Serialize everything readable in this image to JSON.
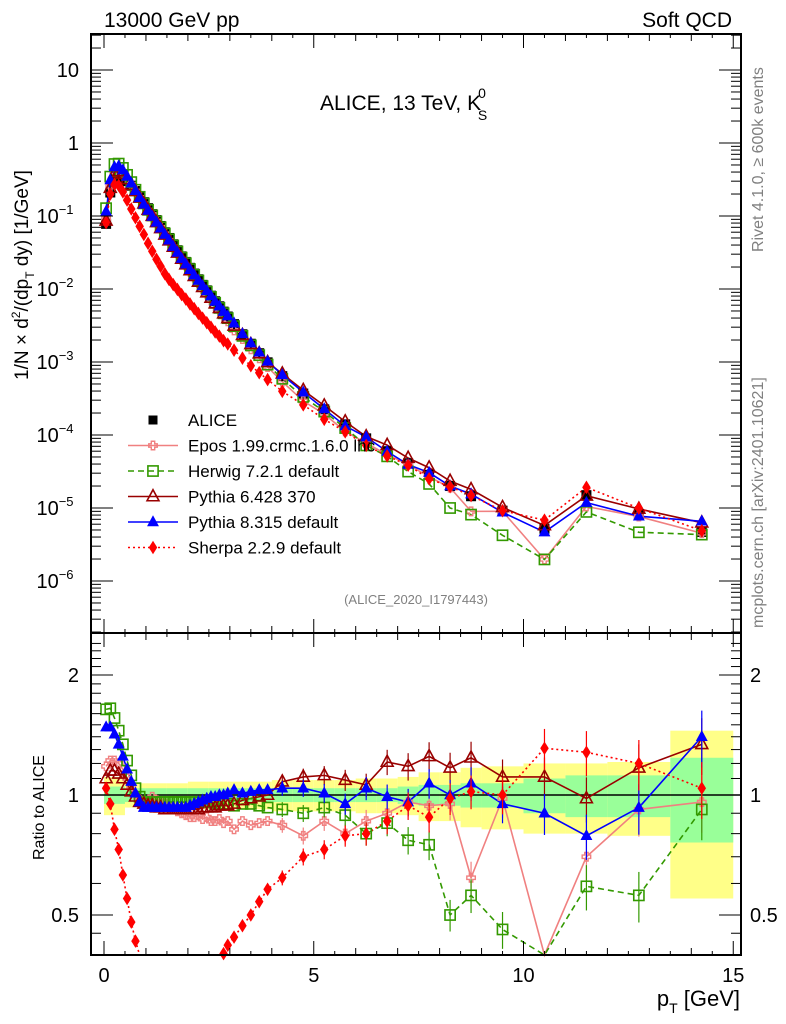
{
  "header": {
    "left_title": "13000 GeV pp",
    "right_title": "Soft QCD"
  },
  "side_labels": {
    "rivet": "Rivet 4.1.0, ≥ 600k events",
    "mcplots": "mcplots.cern.ch [arXiv:2401.10621]"
  },
  "chart_data": [
    {
      "type": "line",
      "panel": "main",
      "title": "ALICE, 13 TeV, K",
      "title_sup": "0",
      "title_sub": "S",
      "analysis_id": "(ALICE_2020_I1797443)",
      "ylabel": "1/N × d²/(dp_T dy) [1/GeV]",
      "yscale": "log",
      "ylim": [
        2.5e-07,
        35
      ],
      "xlim": [
        -0.3,
        15.2
      ],
      "yticks": [
        {
          "v": 10,
          "label": "10"
        },
        {
          "v": 1,
          "label": "1"
        },
        {
          "v": 0.1,
          "label": "10",
          "exp": "−1"
        },
        {
          "v": 0.01,
          "label": "10",
          "exp": "−2"
        },
        {
          "v": 0.001,
          "label": "10",
          "exp": "−3"
        },
        {
          "v": 0.0001,
          "label": "10",
          "exp": "−4"
        },
        {
          "v": 1e-05,
          "label": "10",
          "exp": "−5"
        },
        {
          "v": 1e-06,
          "label": "10",
          "exp": "−6"
        }
      ],
      "legend_position": "lower-left",
      "x": [
        0.05,
        0.15,
        0.25,
        0.35,
        0.45,
        0.55,
        0.65,
        0.75,
        0.85,
        0.95,
        1.05,
        1.15,
        1.25,
        1.35,
        1.45,
        1.55,
        1.65,
        1.75,
        1.85,
        1.95,
        2.05,
        2.15,
        2.25,
        2.35,
        2.45,
        2.55,
        2.65,
        2.75,
        2.85,
        2.95,
        3.1,
        3.3,
        3.5,
        3.7,
        3.9,
        4.25,
        4.75,
        5.25,
        5.75,
        6.25,
        6.75,
        7.25,
        7.75,
        8.25,
        8.75,
        9.5,
        10.5,
        11.5,
        12.75,
        14.25
      ],
      "alice": [
        0.078,
        0.21,
        0.33,
        0.36,
        0.34,
        0.3,
        0.26,
        0.22,
        0.185,
        0.155,
        0.128,
        0.106,
        0.088,
        0.073,
        0.06,
        0.05,
        0.041,
        0.034,
        0.028,
        0.0235,
        0.0195,
        0.0163,
        0.0136,
        0.0114,
        0.0096,
        0.0081,
        0.0068,
        0.0058,
        0.0049,
        0.0042,
        0.0033,
        0.0024,
        0.00178,
        0.00132,
        0.00099,
        0.00064,
        0.00037,
        0.000225,
        0.00014,
        9e-05,
        6e-05,
        4.1e-05,
        2.85e-05,
        2e-05,
        1.45e-05,
        9.2e-06,
        5.2e-06,
        1.5e-05,
        8.3e-06,
        4.7e-06
      ],
      "series": [
        {
          "name": "ALICE",
          "color": "#000000",
          "marker": "square-filled",
          "line": "none",
          "is_reference": true
        },
        {
          "name": "Epos 1.99.crmc.1.6.0 lhc",
          "color": "#f08080",
          "marker": "cross-open",
          "line": "solid",
          "ratio": [
            1.18,
            1.22,
            1.22,
            1.2,
            1.16,
            1.1,
            1.05,
            1.0,
            0.97,
            0.95,
            0.94,
            0.99,
            0.97,
            0.96,
            0.95,
            0.93,
            0.92,
            0.91,
            0.9,
            0.89,
            0.88,
            0.88,
            0.89,
            0.87,
            0.88,
            0.86,
            0.86,
            0.87,
            0.85,
            0.86,
            0.82,
            0.86,
            0.84,
            0.85,
            0.86,
            0.84,
            0.79,
            0.86,
            0.8,
            0.86,
            0.9,
            0.96,
            0.94,
            0.95,
            0.62,
            0.98,
            0.38,
            0.7,
            0.92,
            0.96
          ]
        },
        {
          "name": "Herwig 7.2.1 default",
          "color": "#339900",
          "marker": "square-open",
          "line": "dashed",
          "ratio": [
            1.64,
            1.65,
            1.56,
            1.45,
            1.34,
            1.22,
            1.12,
            1.04,
            0.99,
            0.96,
            0.95,
            0.96,
            0.96,
            0.96,
            0.96,
            0.96,
            0.96,
            0.96,
            0.96,
            0.96,
            0.96,
            0.96,
            0.96,
            0.96,
            0.96,
            0.96,
            0.95,
            0.95,
            0.95,
            0.95,
            0.94,
            0.95,
            0.95,
            0.94,
            0.93,
            0.92,
            0.9,
            0.93,
            0.89,
            0.8,
            0.85,
            0.77,
            0.75,
            0.5,
            0.56,
            0.46,
            0.38,
            0.59,
            0.56,
            0.92
          ]
        },
        {
          "name": "Pythia 6.428 370",
          "color": "#990000",
          "marker": "triangle-open",
          "line": "solid",
          "ratio": [
            1.1,
            1.15,
            1.15,
            1.13,
            1.1,
            1.06,
            1.02,
            0.99,
            0.96,
            0.95,
            0.94,
            0.94,
            0.93,
            0.93,
            0.92,
            0.92,
            0.92,
            0.92,
            0.92,
            0.92,
            0.92,
            0.92,
            0.92,
            0.93,
            0.93,
            0.93,
            0.93,
            0.94,
            0.94,
            0.94,
            0.95,
            0.97,
            0.98,
            0.99,
            1.0,
            1.08,
            1.11,
            1.12,
            1.09,
            1.06,
            1.21,
            1.18,
            1.25,
            1.17,
            1.24,
            1.11,
            1.11,
            0.98,
            1.17,
            1.34
          ]
        },
        {
          "name": "Pythia 8.315 default",
          "color": "#0000ff",
          "marker": "triangle-filled",
          "line": "solid",
          "ratio": [
            1.48,
            1.48,
            1.42,
            1.34,
            1.25,
            1.16,
            1.08,
            1.01,
            0.96,
            0.93,
            0.93,
            0.93,
            0.93,
            0.93,
            0.93,
            0.93,
            0.93,
            0.93,
            0.93,
            0.93,
            0.94,
            0.95,
            0.96,
            0.97,
            0.98,
            0.99,
            0.99,
            1.0,
            1.0,
            1.01,
            1.03,
            1.01,
            1.02,
            1.03,
            1.03,
            1.04,
            1.04,
            1.01,
            0.95,
            1.04,
            0.99,
            0.96,
            1.07,
            1.0,
            1.07,
            0.95,
            0.9,
            0.79,
            0.93,
            1.4
          ]
        },
        {
          "name": "Sherpa 2.2.9 default",
          "color": "#ff0000",
          "marker": "diamond-filled",
          "line": "dotted",
          "ratio": [
            1.04,
            0.95,
            0.82,
            0.73,
            0.63,
            0.55,
            0.48,
            0.43,
            0.39,
            0.36,
            0.33,
            0.31,
            0.29,
            0.28,
            0.27,
            0.27,
            0.28,
            0.29,
            0.3,
            0.31,
            0.32,
            0.33,
            0.34,
            0.35,
            0.36,
            0.37,
            0.38,
            0.39,
            0.4,
            0.42,
            0.44,
            0.47,
            0.5,
            0.54,
            0.58,
            0.62,
            0.7,
            0.73,
            0.79,
            0.8,
            0.86,
            0.94,
            0.88,
            0.98,
            1.02,
            1.0,
            1.31,
            1.28,
            1.2,
            1.04
          ]
        }
      ]
    },
    {
      "type": "line",
      "panel": "ratio",
      "ylabel": "Ratio to ALICE",
      "xlabel": "p_T [GeV]",
      "yscale": "log",
      "ylim": [
        0.43,
        2.45
      ],
      "xlim": [
        -0.3,
        15.2
      ],
      "xticks": [
        {
          "v": 0,
          "label": "0"
        },
        {
          "v": 5,
          "label": "5"
        },
        {
          "v": 10,
          "label": "10"
        },
        {
          "v": 15,
          "label": "15"
        }
      ],
      "yticks": [
        {
          "v": 2,
          "label": "2"
        },
        {
          "v": 1,
          "label": "1"
        },
        {
          "v": 0.5,
          "label": "0.5"
        }
      ],
      "reference_line": 1,
      "band_colors": {
        "stat": "#99ff99",
        "total": "#ffff88"
      },
      "band_edges": [
        0,
        0.5,
        1,
        1.5,
        2,
        2.5,
        3,
        3.5,
        4,
        4.5,
        5,
        5.5,
        6,
        6.5,
        7,
        7.5,
        8,
        8.5,
        9,
        10,
        11,
        12,
        13.5,
        15
      ],
      "band_inner": [
        0.05,
        0.04,
        0.04,
        0.04,
        0.04,
        0.04,
        0.04,
        0.04,
        0.04,
        0.04,
        0.04,
        0.04,
        0.04,
        0.04,
        0.05,
        0.06,
        0.06,
        0.07,
        0.07,
        0.1,
        0.12,
        0.12,
        0.24
      ],
      "band_outer": [
        0.11,
        0.07,
        0.07,
        0.07,
        0.08,
        0.08,
        0.08,
        0.08,
        0.09,
        0.09,
        0.09,
        0.09,
        0.1,
        0.1,
        0.11,
        0.14,
        0.14,
        0.17,
        0.18,
        0.2,
        0.2,
        0.21,
        0.45
      ]
    }
  ]
}
